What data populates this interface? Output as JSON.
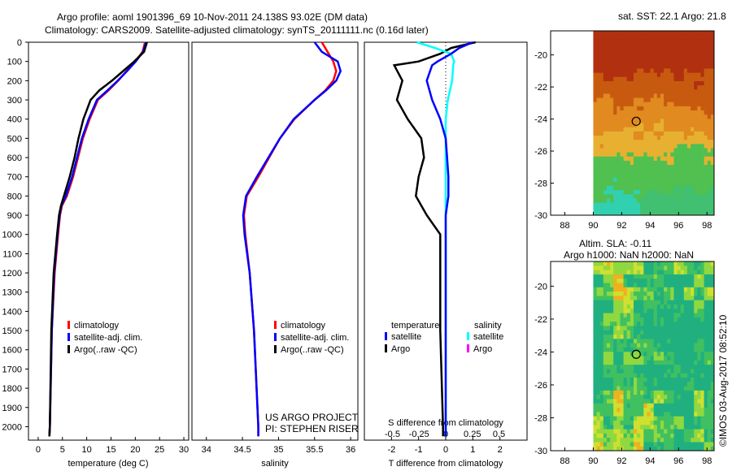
{
  "title": {
    "line1": "Argo profile: aoml 1901396_69 10-Nov-2011 24.138S 93.02E (DM data)",
    "line2": "Climatology: CARS2009. Satellite-adjusted climatology: synTS_20111111.nc (0.16d later)"
  },
  "credit": "US ARGO PROJECT",
  "pi": "PI: STEPHEN RISER",
  "stamp": "©IMOS 03-Aug-2017 08:52:10",
  "colors": {
    "climatology": "#ff0000",
    "satellite": "#0000ff",
    "argo": "#000000",
    "sal_sat": "#00ffff",
    "sal_argo": "#ff00ff"
  },
  "chart_data": [
    {
      "type": "line",
      "xlabel": "temperature (deg C)",
      "ylabel": "",
      "xlim": [
        -2,
        31
      ],
      "ylim": [
        2070,
        0
      ],
      "xticks": [
        0,
        5,
        10,
        15,
        20,
        25,
        30
      ],
      "yticks": [
        0,
        100,
        200,
        300,
        400,
        500,
        600,
        700,
        800,
        900,
        1000,
        1100,
        1200,
        1300,
        1400,
        1500,
        1600,
        1700,
        1800,
        1900,
        2000
      ],
      "depth": [
        0,
        50,
        100,
        150,
        200,
        250,
        300,
        400,
        500,
        600,
        700,
        800,
        850,
        900,
        1000,
        1200,
        1500,
        2000,
        2050
      ],
      "legend": [
        "climatology",
        "satellite-adj. clim.",
        "Argo(..raw -QC)"
      ],
      "series": [
        {
          "name": "climatology",
          "values": [
            22,
            21.5,
            20,
            18.2,
            16.5,
            14.5,
            12.3,
            10.6,
            9.2,
            8.2,
            7.2,
            5.9,
            4.9,
            4.5,
            4.1,
            3.4,
            2.8,
            2.4,
            2.3
          ]
        },
        {
          "name": "satellite-adj. clim.",
          "values": [
            22.2,
            21.6,
            20.1,
            18.3,
            16.4,
            14.3,
            12.1,
            10.4,
            9,
            8,
            7,
            5.7,
            4.8,
            4.4,
            4,
            3.3,
            2.8,
            2.4,
            2.3
          ]
        },
        {
          "name": "Argo(..raw -QC)",
          "values": [
            22.4,
            21.8,
            19.8,
            17.5,
            15.2,
            12.6,
            10.8,
            9.3,
            8.3,
            7.5,
            6.5,
            5.3,
            4.7,
            4.3,
            3.9,
            3.2,
            2.7,
            2.4,
            2.3
          ]
        }
      ]
    },
    {
      "type": "line",
      "xlabel": "salinity",
      "xlim": [
        33.8,
        36.1
      ],
      "ylim": [
        2070,
        0
      ],
      "xticks": [
        34,
        34.5,
        35,
        35.5,
        36
      ],
      "depth": [
        0,
        50,
        100,
        150,
        200,
        250,
        300,
        400,
        500,
        600,
        700,
        800,
        900,
        1000,
        1200,
        1500,
        2000,
        2050
      ],
      "legend": [
        "climatology",
        "satellite-adj. clim.",
        "Argo(..raw -QC)"
      ],
      "series": [
        {
          "name": "climatology",
          "values": [
            35.6,
            35.68,
            35.76,
            35.8,
            35.76,
            35.65,
            35.5,
            35.22,
            35.02,
            34.87,
            34.72,
            34.56,
            34.52,
            34.54,
            34.6,
            34.66,
            34.72,
            34.72
          ]
        },
        {
          "name": "satellite-adj. clim.",
          "values": [
            35.5,
            35.6,
            35.82,
            35.86,
            35.8,
            35.66,
            35.5,
            35.21,
            35.02,
            34.86,
            34.7,
            34.55,
            34.51,
            34.53,
            34.6,
            34.66,
            34.72,
            34.72
          ]
        }
      ]
    },
    {
      "type": "line",
      "xlabel": "T difference from climatology",
      "xlabel2": "S difference from climatology",
      "xlim": [
        -3,
        3
      ],
      "xticks": [
        -2,
        -1,
        0,
        1,
        2
      ],
      "xticks2": [
        -0.5,
        -0.25,
        0,
        0.25,
        0.5
      ],
      "ylim": [
        2070,
        0
      ],
      "legend_titles": [
        "temperature",
        "salinity"
      ],
      "legend": [
        "satellite",
        "Argo",
        "satellite",
        "Argo"
      ],
      "depth": [
        0,
        30,
        60,
        100,
        120,
        200,
        300,
        400,
        500,
        600,
        700,
        800,
        900,
        1000,
        1500,
        2000,
        2050
      ],
      "series": [
        {
          "name": "T satellite",
          "values": [
            1.0,
            0.5,
            0.2,
            -0.3,
            -0.5,
            -0.7,
            -0.5,
            -0.2,
            0,
            0.05,
            0.1,
            0.1,
            0,
            0,
            0,
            0,
            0
          ]
        },
        {
          "name": "T Argo",
          "values": [
            1.1,
            0.2,
            -0.2,
            -1.0,
            -1.9,
            -1.6,
            -1.8,
            -1.4,
            -0.9,
            -0.8,
            -1.0,
            -1.1,
            -0.7,
            -0.2,
            -0.2,
            -0.1,
            -0.1
          ]
        },
        {
          "name": "S satellite",
          "values": [
            -0.27,
            -0.1,
            0.05,
            0.08,
            0.07,
            0.06,
            0.02,
            0,
            0,
            0,
            0,
            0,
            0,
            0,
            0,
            0,
            0
          ]
        }
      ]
    },
    {
      "type": "heatmap",
      "title": "sat. SST: 22.1  Argo: 21.8",
      "xlim": [
        87,
        98.5
      ],
      "ylim": [
        -30,
        -18.5
      ],
      "xticks": [
        88,
        90,
        92,
        94,
        96,
        98
      ],
      "yticks": [
        -20,
        -22,
        -24,
        -26,
        -28,
        -30
      ],
      "marker": [
        93.02,
        -24.14
      ]
    },
    {
      "type": "heatmap",
      "title": "Altim. SLA: -0.11",
      "subtitle": "Argo h1000: NaN h2000: NaN",
      "xlim": [
        87,
        98.5
      ],
      "ylim": [
        -30,
        -18.5
      ],
      "xticks": [
        88,
        90,
        92,
        94,
        96,
        98
      ],
      "yticks": [
        -20,
        -22,
        -24,
        -26,
        -28,
        -30
      ],
      "marker": [
        93.02,
        -24.14
      ]
    }
  ]
}
